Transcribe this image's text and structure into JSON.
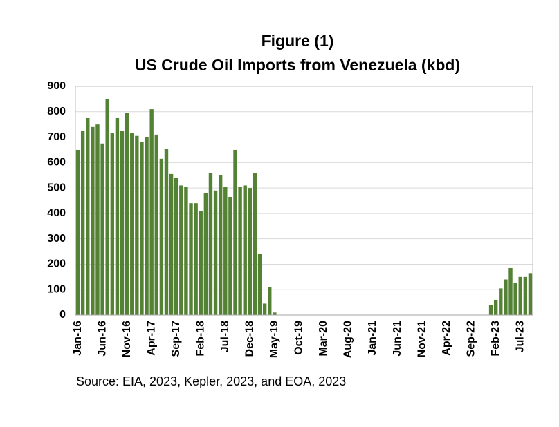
{
  "chart_data": {
    "type": "bar",
    "title": "Figure (1)",
    "subtitle": "US Crude Oil Imports from Venezuela (kbd)",
    "source": "Source: EIA, 2023, Kepler, 2023, and EOA, 2023",
    "categories": [
      "Jan-16",
      null,
      null,
      null,
      null,
      "Jun-16",
      null,
      null,
      null,
      null,
      "Nov-16",
      null,
      null,
      null,
      null,
      "Apr-17",
      null,
      null,
      null,
      null,
      "Sep-17",
      null,
      null,
      null,
      null,
      "Feb-18",
      null,
      null,
      null,
      null,
      "Jul-18",
      null,
      null,
      null,
      null,
      "Dec-18",
      null,
      null,
      null,
      null,
      "May-19",
      null,
      null,
      null,
      null,
      "Oct-19",
      null,
      null,
      null,
      null,
      "Mar-20",
      null,
      null,
      null,
      null,
      "Aug-20",
      null,
      null,
      null,
      null,
      "Jan-21",
      null,
      null,
      null,
      null,
      "Jun-21",
      null,
      null,
      null,
      null,
      "Nov-21",
      null,
      null,
      null,
      null,
      "Apr-22",
      null,
      null,
      null,
      null,
      "Sep-22",
      null,
      null,
      null,
      null,
      "Feb-23",
      null,
      null,
      null,
      null,
      "Jul-23",
      null,
      null
    ],
    "values": [
      650,
      725,
      775,
      740,
      750,
      675,
      850,
      715,
      775,
      725,
      795,
      715,
      705,
      680,
      700,
      810,
      710,
      615,
      655,
      555,
      540,
      510,
      505,
      440,
      440,
      410,
      480,
      560,
      490,
      550,
      505,
      465,
      650,
      505,
      510,
      500,
      560,
      240,
      45,
      110,
      10,
      0,
      0,
      0,
      0,
      0,
      0,
      0,
      0,
      0,
      0,
      0,
      0,
      0,
      0,
      0,
      0,
      0,
      0,
      0,
      0,
      0,
      0,
      0,
      0,
      0,
      0,
      0,
      0,
      0,
      0,
      0,
      0,
      0,
      0,
      0,
      0,
      0,
      0,
      0,
      0,
      0,
      0,
      0,
      40,
      60,
      105,
      140,
      185,
      125,
      150,
      150,
      165
    ],
    "color": "#548235",
    "ylim": [
      0,
      900
    ],
    "yticks": [
      0,
      100,
      200,
      300,
      400,
      500,
      600,
      700,
      800,
      900
    ],
    "grid": true
  }
}
